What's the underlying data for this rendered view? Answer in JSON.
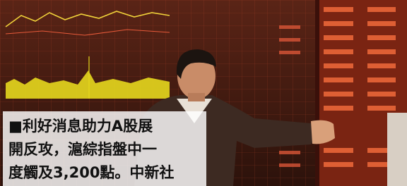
{
  "caption": {
    "lines": [
      "■利好消息助力A股展",
      "開反攻，滬綜指盤中一",
      "度觸及3,200點。中新社"
    ]
  }
}
